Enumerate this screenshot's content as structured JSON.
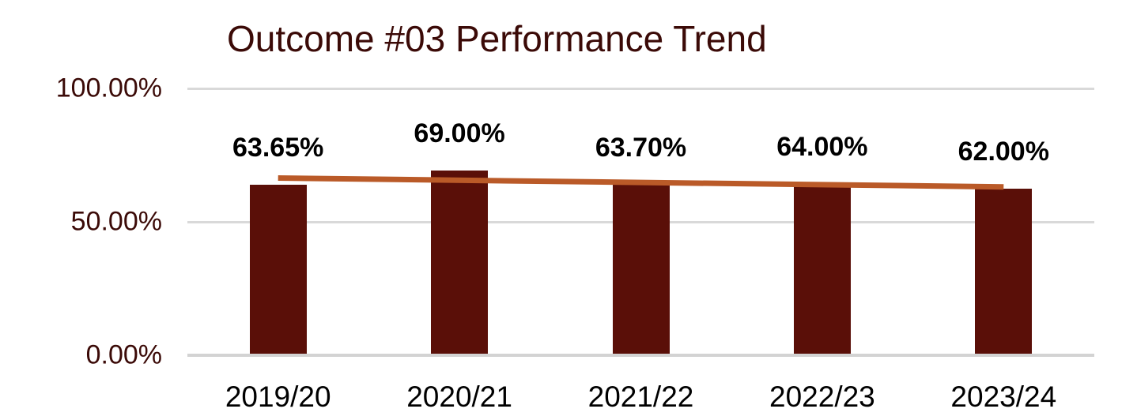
{
  "chart_data": {
    "type": "bar",
    "title": "Outcome #03 Performance Trend",
    "categories": [
      "2019/20",
      "2020/21",
      "2021/22",
      "2022/23",
      "2023/24"
    ],
    "values": [
      63.65,
      69.0,
      63.7,
      64.0,
      62.0
    ],
    "data_labels": [
      "63.65%",
      "69.00%",
      "63.70%",
      "64.00%",
      "62.00%"
    ],
    "y_ticks": [
      {
        "label": "0.00%",
        "value": 0
      },
      {
        "label": "50.00%",
        "value": 50
      },
      {
        "label": "100.00%",
        "value": 100
      }
    ],
    "ylim": [
      0,
      100
    ],
    "xlabel": "",
    "ylabel": "",
    "grid": "horizontal",
    "legend": "none",
    "trendline": {
      "type": "linear",
      "applies_to": "values"
    },
    "colors": {
      "bar_fill": "#5A0F08",
      "trendline": "#BA5A28",
      "title_text": "#3B0A07",
      "y_tick_text": "#3B0A07",
      "x_tick_text": "#000000",
      "data_label_text": "#000000",
      "gridline": "#D9D9D9",
      "axis_line": "#D3D3D3",
      "background": "#FFFFFF"
    }
  }
}
